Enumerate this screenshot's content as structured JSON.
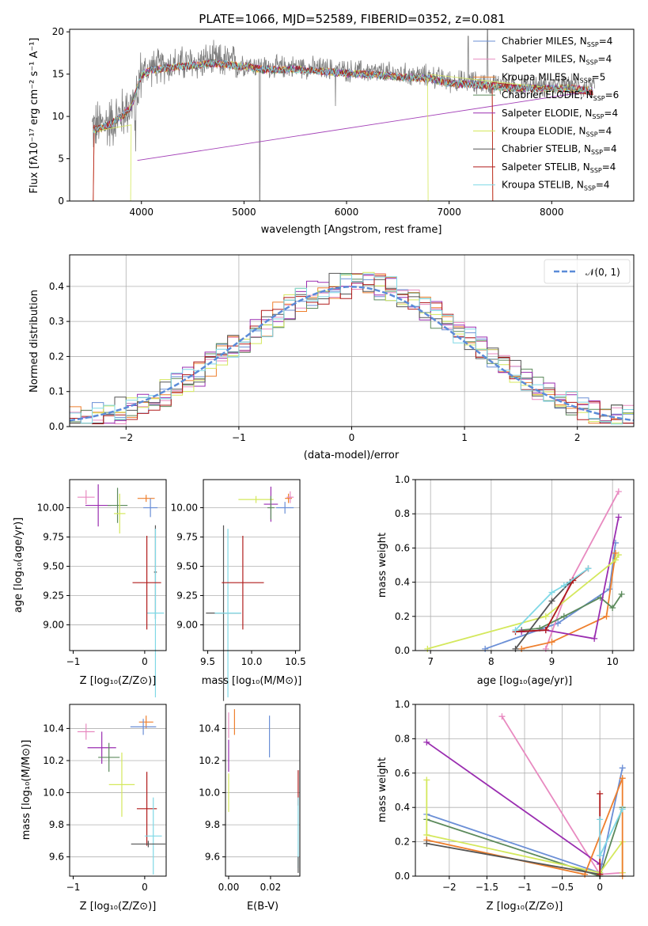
{
  "chart_data": [
    {
      "type": "line",
      "title": "PLATE=1066, MJD=52589, FIBERID=0352, z=0.081",
      "xlabel": "wavelength [Angstrom, rest frame]",
      "ylabel": "Flux [fλ10⁻¹⁷ erg cm⁻² s⁻¹ A⁻¹]",
      "xlim": [
        3300,
        8800
      ],
      "ylim": [
        0,
        20.3
      ],
      "xticks": [
        4000,
        5000,
        6000,
        7000,
        8000
      ],
      "yticks": [
        0,
        5,
        10,
        15,
        20
      ],
      "legend_position": "right",
      "series": [
        {
          "name": "Chabrier MILES, N",
          "sub": "SSP",
          "suffix": "=4",
          "color": "#6b8fd6"
        },
        {
          "name": "Salpeter MILES, N",
          "sub": "SSP",
          "suffix": "=4",
          "color": "#e88ac0"
        },
        {
          "name": "Kroupa MILES, N",
          "sub": "SSP",
          "suffix": "=5",
          "color": "#ee7f2d"
        },
        {
          "name": "Chabrier ELODIE, N",
          "sub": "SSP",
          "suffix": "=6",
          "color": "#5c8a5c"
        },
        {
          "name": "Salpeter ELODIE, N",
          "sub": "SSP",
          "suffix": "=4",
          "color": "#9a2db0"
        },
        {
          "name": "Kroupa ELODIE, N",
          "sub": "SSP",
          "suffix": "=4",
          "color": "#d4e85c"
        },
        {
          "name": "Chabrier STELIB, N",
          "sub": "SSP",
          "suffix": "=4",
          "color": "#555555"
        },
        {
          "name": "Salpeter STELIB, N",
          "sub": "SSP",
          "suffix": "=4",
          "color": "#b01c1c"
        },
        {
          "name": "Kroupa STELIB, N",
          "sub": "SSP",
          "suffix": "=4",
          "color": "#7fd8e6"
        }
      ],
      "data_color": "#808080",
      "continuum_x": [
        3500,
        3600,
        3700,
        3800,
        3900,
        4000,
        4100,
        4300,
        4500,
        4700,
        5000,
        5200,
        5500,
        5800,
        6000,
        6300,
        6600,
        6800,
        7000,
        7300,
        7600,
        7900,
        8200,
        8400
      ],
      "continuum_y": [
        8.6,
        8.9,
        9.4,
        10.2,
        11.4,
        15.2,
        15.8,
        16.1,
        16.3,
        16.6,
        16.2,
        15.8,
        15.9,
        15.6,
        15.4,
        15.2,
        14.9,
        14.8,
        14.2,
        14.0,
        13.7,
        13.6,
        13.6,
        13.3
      ]
    },
    {
      "type": "step",
      "xlabel": "(data-model)/error",
      "ylabel": "Normed distribution",
      "xlim": [
        -2.5,
        2.5
      ],
      "ylim": [
        0,
        0.49
      ],
      "xticks": [
        -2,
        -1,
        0,
        1,
        2
      ],
      "yticks": [
        0.0,
        0.1,
        0.2,
        0.3,
        0.4
      ],
      "legend": "𝒩(0, 1)",
      "legend_position": "top-right",
      "bin_width": 0.1,
      "bin_start": -2.5,
      "grid": true
    },
    {
      "type": "errorbar",
      "xlabel": "Z [log₁₀(Z/Z⊙)]",
      "ylabel": "age  [log₁₀(age/yr)]",
      "xlim": [
        -1.05,
        0.3
      ],
      "ylim": [
        8.78,
        10.24
      ],
      "xticks": [
        -1,
        0
      ],
      "yticks": [
        9.0,
        9.25,
        9.5,
        9.75,
        10.0
      ],
      "points": [
        {
          "x": -0.82,
          "y": 10.09,
          "xe": 0.12,
          "ye": 0.06,
          "color": "#e88ac0"
        },
        {
          "x": -0.65,
          "y": 10.02,
          "xe": 0.18,
          "ye": 0.18,
          "color": "#9a2db0"
        },
        {
          "x": -0.38,
          "y": 10.02,
          "xe": 0.14,
          "ye": 0.15,
          "color": "#5c8a5c"
        },
        {
          "x": -0.35,
          "y": 9.95,
          "xe": 0.08,
          "ye": 0.17,
          "color": "#d4e85c"
        },
        {
          "x": 0.02,
          "y": 10.08,
          "xe": 0.12,
          "ye": 0.03,
          "color": "#ee7f2d"
        },
        {
          "x": 0.08,
          "y": 10.0,
          "xe": 0.1,
          "ye": 0.08,
          "color": "#6b8fd6"
        },
        {
          "x": 0.15,
          "y": 9.45,
          "xe": 0.02,
          "ye": 0.4,
          "color": "#555555"
        },
        {
          "x": 0.15,
          "y": 9.1,
          "xe": 0.12,
          "ye": 0.72,
          "color": "#7fd8e6"
        },
        {
          "x": 0.03,
          "y": 9.36,
          "xe": 0.2,
          "ye": 0.4,
          "color": "#b01c1c"
        }
      ]
    },
    {
      "type": "errorbar",
      "xlabel": "mass [log₁₀(M/M⊙)]",
      "ylabel": "",
      "xlim": [
        9.45,
        10.55
      ],
      "ylim": [
        8.78,
        10.24
      ],
      "xticks": [
        9.5,
        10.0,
        10.5
      ],
      "yticks": [
        9.0,
        9.25,
        9.5,
        9.75,
        10.0
      ],
      "points": [
        {
          "x": 10.05,
          "y": 10.07,
          "xe": 0.2,
          "ye": 0.03,
          "color": "#d4e85c"
        },
        {
          "x": 10.22,
          "y": 10.03,
          "xe": 0.08,
          "ye": 0.15,
          "color": "#9a2db0"
        },
        {
          "x": 10.22,
          "y": 10.0,
          "xe": 0.04,
          "ye": 0.1,
          "color": "#5c8a5c"
        },
        {
          "x": 10.38,
          "y": 10.0,
          "xe": 0.1,
          "ye": 0.05,
          "color": "#6b8fd6"
        },
        {
          "x": 10.42,
          "y": 10.08,
          "xe": 0.04,
          "ye": 0.04,
          "color": "#ee7f2d"
        },
        {
          "x": 10.44,
          "y": 10.09,
          "xe": 0.04,
          "ye": 0.05,
          "color": "#e88ac0"
        },
        {
          "x": 9.68,
          "y": 9.1,
          "xe": 0.2,
          "ye": 0.75,
          "color": "#555555"
        },
        {
          "x": 9.73,
          "y": 9.1,
          "xe": 0.15,
          "ye": 0.72,
          "color": "#7fd8e6"
        },
        {
          "x": 9.9,
          "y": 9.36,
          "xe": 0.24,
          "ye": 0.4,
          "color": "#b01c1c"
        }
      ]
    },
    {
      "type": "line",
      "xlabel": "age  [log₁₀(age/yr)]",
      "ylabel": "mass weight",
      "xlim": [
        6.75,
        10.35
      ],
      "ylim": [
        0,
        1.0
      ],
      "xticks": [
        7,
        8,
        9,
        10
      ],
      "yticks": [
        0.0,
        0.2,
        0.4,
        0.6,
        0.8,
        1.0
      ],
      "grid": true,
      "series": [
        {
          "color": "#6b8fd6",
          "x": [
            7.9,
            9.1,
            9.95,
            10.05
          ],
          "y": [
            0.01,
            0.16,
            0.36,
            0.63
          ]
        },
        {
          "color": "#e88ac0",
          "x": [
            8.9,
            9.3,
            10.1
          ],
          "y": [
            0.01,
            0.4,
            0.93
          ]
        },
        {
          "color": "#ee7f2d",
          "x": [
            8.5,
            9.0,
            9.9,
            10.05
          ],
          "y": [
            0.01,
            0.05,
            0.2,
            0.57
          ]
        },
        {
          "color": "#5c8a5c",
          "x": [
            8.5,
            8.8,
            9.2,
            9.8,
            10.0,
            10.15
          ],
          "y": [
            0.12,
            0.13,
            0.2,
            0.31,
            0.25,
            0.33
          ]
        },
        {
          "color": "#9a2db0",
          "x": [
            8.5,
            8.9,
            9.7,
            10.1
          ],
          "y": [
            0.11,
            0.12,
            0.07,
            0.78
          ]
        },
        {
          "color": "#d4e85c",
          "x": [
            6.95,
            8.9,
            10.05,
            10.1
          ],
          "y": [
            0.01,
            0.2,
            0.53,
            0.56
          ]
        },
        {
          "color": "#555555",
          "x": [
            8.4,
            9.0,
            9.3
          ],
          "y": [
            0.01,
            0.29,
            0.4
          ]
        },
        {
          "color": "#b01c1c",
          "x": [
            8.4,
            8.9,
            9.35,
            9.6
          ],
          "y": [
            0.11,
            0.12,
            0.41,
            0.48
          ]
        },
        {
          "color": "#7fd8e6",
          "x": [
            8.4,
            9.0,
            9.2,
            9.6
          ],
          "y": [
            0.12,
            0.34,
            0.38,
            0.48
          ]
        }
      ]
    },
    {
      "type": "errorbar",
      "xlabel": "Z [log₁₀(Z/Z⊙)]",
      "ylabel": "mass [log₁₀(M/M⊙)]",
      "xlim": [
        -1.05,
        0.3
      ],
      "ylim": [
        9.48,
        10.55
      ],
      "xticks": [
        -1,
        0
      ],
      "yticks": [
        9.6,
        9.8,
        10.0,
        10.2,
        10.4
      ],
      "points": [
        {
          "x": -0.82,
          "y": 10.38,
          "xe": 0.12,
          "ye": 0.05,
          "color": "#e88ac0"
        },
        {
          "x": -0.6,
          "y": 10.28,
          "xe": 0.2,
          "ye": 0.1,
          "color": "#9a2db0"
        },
        {
          "x": -0.5,
          "y": 10.22,
          "xe": 0.15,
          "ye": 0.09,
          "color": "#5c8a5c"
        },
        {
          "x": -0.32,
          "y": 10.05,
          "xe": 0.18,
          "ye": 0.2,
          "color": "#d4e85c"
        },
        {
          "x": 0.02,
          "y": 10.44,
          "xe": 0.1,
          "ye": 0.04,
          "color": "#ee7f2d"
        },
        {
          "x": -0.02,
          "y": 10.41,
          "xe": 0.18,
          "ye": 0.05,
          "color": "#6b8fd6"
        },
        {
          "x": 0.03,
          "y": 9.9,
          "xe": 0.14,
          "ye": 0.23,
          "color": "#b01c1c"
        },
        {
          "x": 0.12,
          "y": 9.73,
          "xe": 0.12,
          "ye": 0.24,
          "color": "#7fd8e6"
        },
        {
          "x": 0.05,
          "y": 9.68,
          "xe": 0.24,
          "ye": 0.02,
          "color": "#555555"
        }
      ]
    },
    {
      "type": "errorbar",
      "xlabel": "E(B-V)",
      "ylabel": "",
      "xlim": [
        -0.0015,
        0.034
      ],
      "ylim": [
        9.48,
        10.55
      ],
      "xticks": [
        0.0,
        0.02
      ],
      "yticks": [
        9.6,
        9.8,
        10.0,
        10.2,
        10.4
      ],
      "points": [
        {
          "x": 0.0,
          "y": 10.23,
          "xe": 0,
          "ye": 0.1,
          "color": "#9a2db0"
        },
        {
          "x": 0.0,
          "y": 10.0,
          "xe": 0,
          "ye": 0.12,
          "color": "#d4e85c"
        },
        {
          "x": 0.0,
          "y": 10.42,
          "xe": 0,
          "ye": 0.08,
          "color": "#e88ac0"
        },
        {
          "x": 0.0028,
          "y": 10.44,
          "xe": 0,
          "ye": 0.08,
          "color": "#ee7f2d"
        },
        {
          "x": 0.0195,
          "y": 10.35,
          "xe": 0,
          "ye": 0.13,
          "color": "#6b8fd6"
        },
        {
          "x": 0.0332,
          "y": 10.03,
          "xe": 0,
          "ye": 0.11,
          "color": "#b01c1c"
        },
        {
          "x": 0.0332,
          "y": 9.75,
          "xe": 0,
          "ye": 0.22,
          "color": "#7fd8e6"
        },
        {
          "x": 0.0332,
          "y": 9.55,
          "xe": 0,
          "ye": 0.05,
          "color": "#555555"
        }
      ]
    },
    {
      "type": "line",
      "xlabel": "Z [log₁₀(Z/Z⊙)]",
      "ylabel": "mass weight",
      "xlim": [
        -2.45,
        0.45
      ],
      "ylim": [
        0,
        1.0
      ],
      "xticks": [
        -2.0,
        -1.5,
        -1.0,
        -0.5,
        0.0
      ],
      "yticks": [
        0.0,
        0.2,
        0.4,
        0.6,
        0.8,
        1.0
      ],
      "grid": true,
      "series": [
        {
          "color": "#e88ac0",
          "x": [
            -1.3,
            0.0,
            0.3
          ],
          "y": [
            0.93,
            0.01,
            0.02
          ]
        },
        {
          "color": "#9a2db0",
          "x": [
            -2.3,
            0.0,
            0.0
          ],
          "y": [
            0.78,
            0.07,
            0.01
          ]
        },
        {
          "color": "#6b8fd6",
          "x": [
            -2.3,
            0.0,
            0.3
          ],
          "y": [
            0.36,
            0.02,
            0.63
          ]
        },
        {
          "color": "#5c8a5c",
          "x": [
            -2.3,
            0.0,
            0.3
          ],
          "y": [
            0.33,
            0.0,
            0.4
          ]
        },
        {
          "color": "#d4e85c",
          "x": [
            -2.3,
            -2.3,
            0.0,
            0.3,
            0.3
          ],
          "y": [
            0.56,
            0.24,
            0.02,
            0.2,
            0.02
          ]
        },
        {
          "color": "#ee7f2d",
          "x": [
            -2.3,
            -0.2,
            0.3,
            0.3
          ],
          "y": [
            0.21,
            0.01,
            0.57,
            0.0
          ]
        },
        {
          "color": "#555555",
          "x": [
            -2.3,
            0.0
          ],
          "y": [
            0.19,
            0.01
          ]
        },
        {
          "color": "#b01c1c",
          "x": [
            0.0,
            0.0
          ],
          "y": [
            0.48,
            0.01
          ]
        },
        {
          "color": "#7fd8e6",
          "x": [
            0.0,
            0.0,
            0.3
          ],
          "y": [
            0.33,
            0.12,
            0.39
          ]
        }
      ]
    }
  ]
}
